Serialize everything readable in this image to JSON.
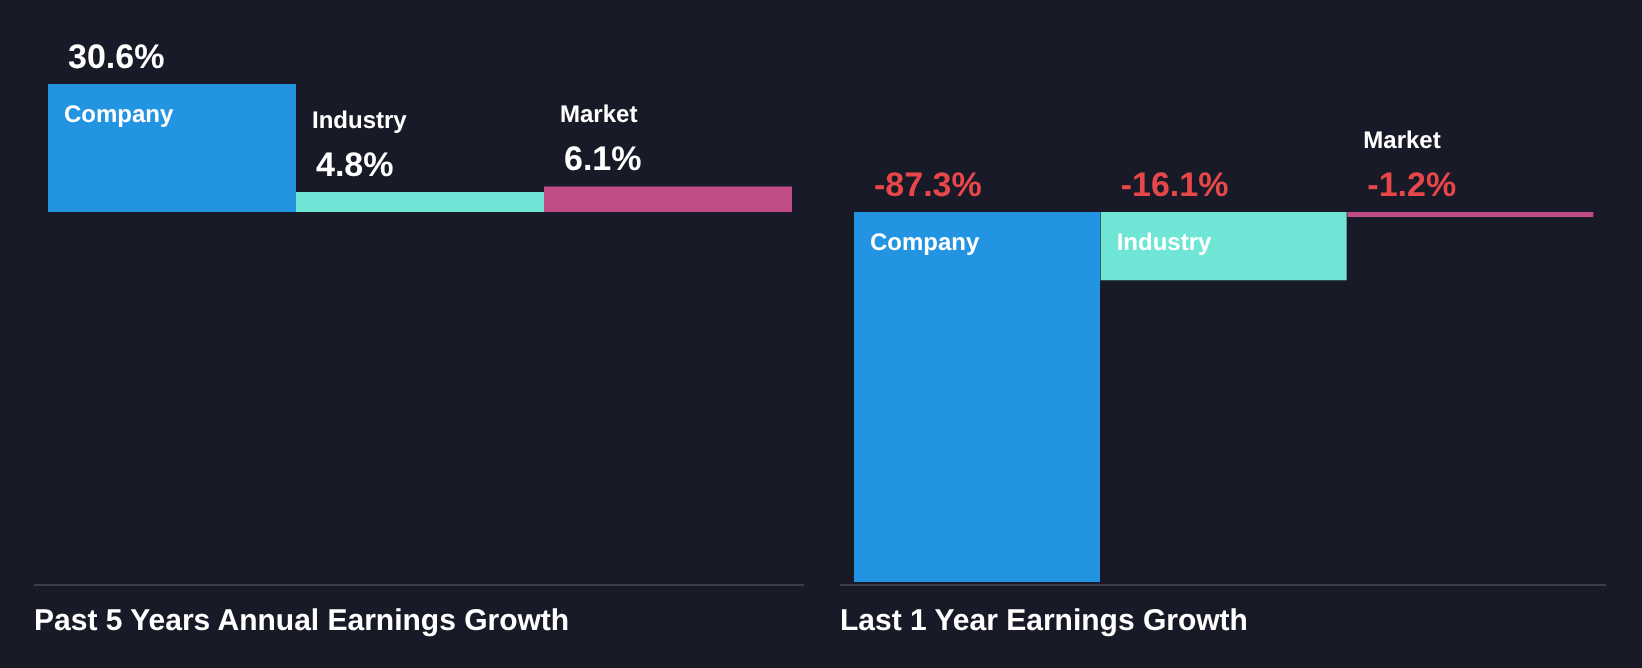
{
  "chart_data": [
    {
      "type": "bar",
      "title": "Past 5 Years Annual Earnings Growth",
      "categories": [
        "Company",
        "Industry",
        "Market"
      ],
      "values": [
        30.6,
        4.8,
        6.1
      ],
      "value_labels": [
        "30.6%",
        "4.8%",
        "6.1%"
      ],
      "colors": [
        "#2394e1",
        "#6fe6d5",
        "#c24d86"
      ]
    },
    {
      "type": "bar",
      "title": "Last 1 Year Earnings Growth",
      "categories": [
        "Company",
        "Industry",
        "Market"
      ],
      "values": [
        -87.3,
        -16.1,
        -1.2
      ],
      "value_labels": [
        "-87.3%",
        "-16.1%",
        "-1.2%"
      ],
      "colors": [
        "#2394e1",
        "#6fe6d5",
        "#c24d86"
      ]
    }
  ]
}
